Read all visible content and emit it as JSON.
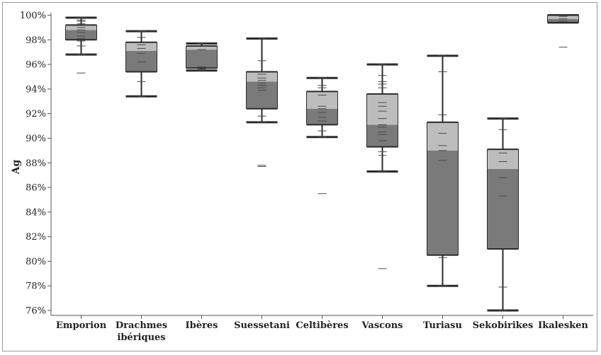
{
  "chart_data": {
    "type": "box",
    "ylabel": "Ag",
    "ylim": [
      75.6,
      100.2
    ],
    "yticks": [
      "76%",
      "78%",
      "80%",
      "82%",
      "84%",
      "86%",
      "88%",
      "90%",
      "92%",
      "94%",
      "96%",
      "98%",
      "100%"
    ],
    "grid": false,
    "colors": {
      "lower_box": "#7a7a7a",
      "upper_box": "#bdbdbd",
      "line": "#2b2b2b",
      "axis": "#555555"
    },
    "categories": [
      {
        "label": [
          "Emporion"
        ],
        "min": 96.8,
        "q1": 98.0,
        "median": 98.8,
        "q3": 99.2,
        "max": 99.8,
        "points": [
          99.8,
          99.6,
          99.5,
          99.3,
          99.0,
          98.8,
          98.6,
          98.3,
          98.1,
          97.9,
          97.5,
          96.8,
          95.3
        ]
      },
      {
        "label": [
          "Drachmes",
          "ibériques"
        ],
        "min": 93.4,
        "q1": 95.4,
        "median": 97.1,
        "q3": 97.8,
        "max": 98.7,
        "points": [
          98.7,
          98.2,
          97.8,
          97.6,
          97.3,
          96.9,
          96.2,
          95.4,
          94.6,
          93.4
        ]
      },
      {
        "label": [
          "Ibères"
        ],
        "min": 95.5,
        "q1": 95.7,
        "median": 97.2,
        "q3": 97.5,
        "max": 97.7,
        "points": [
          97.7,
          97.5,
          97.2,
          95.8,
          95.6,
          95.5
        ]
      },
      {
        "label": [
          "Suessetani"
        ],
        "min": 91.3,
        "q1": 92.4,
        "median": 94.6,
        "q3": 95.4,
        "max": 98.1,
        "points": [
          98.1,
          96.3,
          95.4,
          95.2,
          94.9,
          94.7,
          94.5,
          94.3,
          94.1,
          93.9,
          92.4,
          91.8,
          91.3,
          87.8,
          87.7
        ]
      },
      {
        "label": [
          "Celtibères"
        ],
        "min": 90.1,
        "q1": 91.1,
        "median": 92.4,
        "q3": 93.8,
        "max": 94.9,
        "points": [
          94.9,
          94.3,
          94.1,
          93.8,
          93.5,
          92.6,
          92.4,
          92.1,
          91.7,
          91.4,
          91.1,
          90.6,
          90.1,
          85.5
        ]
      },
      {
        "label": [
          "Vascons"
        ],
        "min": 87.3,
        "q1": 89.3,
        "median": 91.1,
        "q3": 93.6,
        "max": 96.0,
        "points": [
          96.0,
          95.1,
          94.6,
          94.4,
          94.1,
          93.6,
          92.9,
          92.6,
          92.2,
          91.6,
          91.1,
          90.9,
          90.5,
          90.3,
          89.8,
          89.3,
          88.9,
          88.6,
          87.3,
          79.4
        ]
      },
      {
        "label": [
          "Turiasu"
        ],
        "min": 78.0,
        "q1": 80.5,
        "median": 89.0,
        "q3": 91.3,
        "max": 96.7,
        "points": [
          96.7,
          95.4,
          91.9,
          91.3,
          90.4,
          89.4,
          89.0,
          88.2,
          80.5,
          80.3,
          78.0
        ]
      },
      {
        "label": [
          "Sekobirikes"
        ],
        "min": 76.0,
        "q1": 81.0,
        "median": 87.5,
        "q3": 89.1,
        "max": 91.6,
        "points": [
          91.6,
          90.7,
          89.1,
          88.8,
          88.1,
          86.8,
          85.3,
          81.0,
          77.9,
          76.0
        ]
      },
      {
        "label": [
          "Ikalesken"
        ],
        "min": 99.4,
        "q1": 99.4,
        "median": 99.7,
        "q3": 100.0,
        "max": 100.0,
        "points": [
          100.0,
          99.9,
          99.7,
          99.5,
          99.4,
          97.4
        ]
      }
    ]
  }
}
